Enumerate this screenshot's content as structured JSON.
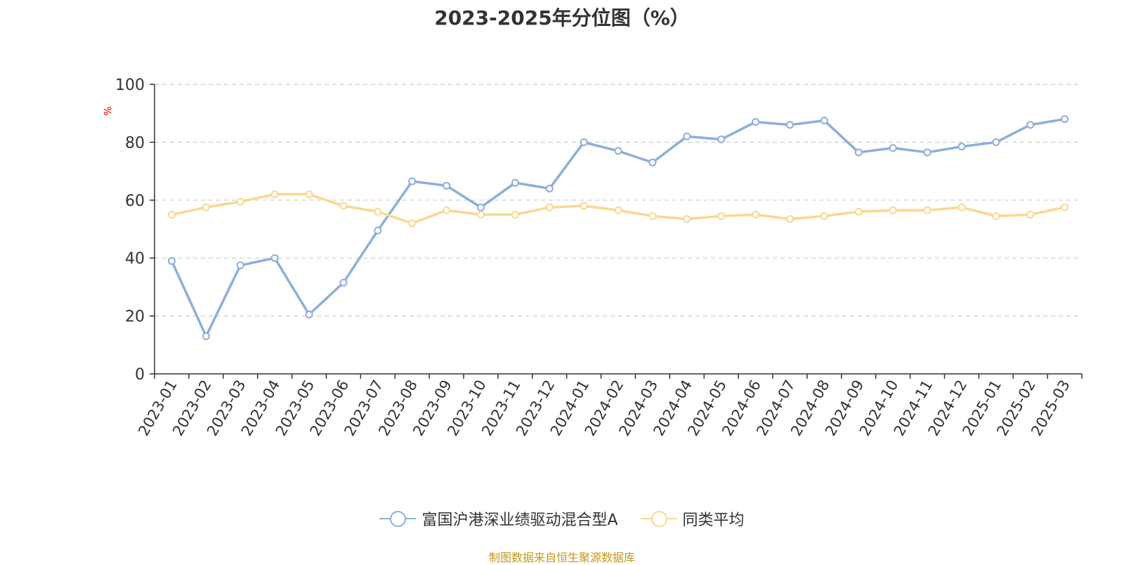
{
  "chart_data": {
    "type": "line",
    "title": "2023-2025年分位图（%）",
    "ylabel": "%",
    "ylim": [
      0,
      100
    ],
    "yticks": [
      0,
      20,
      40,
      60,
      80,
      100
    ],
    "grid": true,
    "legend_position": "bottom",
    "categories": [
      "2023-01",
      "2023-02",
      "2023-03",
      "2023-04",
      "2023-05",
      "2023-06",
      "2023-07",
      "2023-08",
      "2023-09",
      "2023-10",
      "2023-11",
      "2023-12",
      "2024-01",
      "2024-02",
      "2024-03",
      "2024-04",
      "2024-05",
      "2024-06",
      "2024-07",
      "2024-08",
      "2024-09",
      "2024-10",
      "2024-11",
      "2024-12",
      "2025-01",
      "2025-02",
      "2025-03"
    ],
    "series": [
      {
        "name": "富国沪港深业绩驱动混合型A",
        "color": "#8eaedb",
        "values": [
          39,
          13,
          37.5,
          40,
          20.5,
          31.5,
          49.5,
          66.5,
          65,
          57.5,
          66,
          64,
          80,
          77,
          73,
          82,
          81,
          87,
          86,
          87.5,
          76.5,
          78,
          76.5,
          78.5,
          80,
          86,
          88
        ]
      },
      {
        "name": "同类平均",
        "color": "#fad88f",
        "values": [
          55,
          57.5,
          59.5,
          62,
          62,
          58,
          56,
          52,
          56.5,
          55,
          55,
          57.5,
          58,
          56.5,
          54.5,
          53.5,
          54.5,
          55,
          53.5,
          54.5,
          56,
          56.5,
          56.5,
          57.5,
          54.5,
          55,
          57.5
        ]
      }
    ]
  },
  "source": "制图数据来自恒生聚源数据库"
}
